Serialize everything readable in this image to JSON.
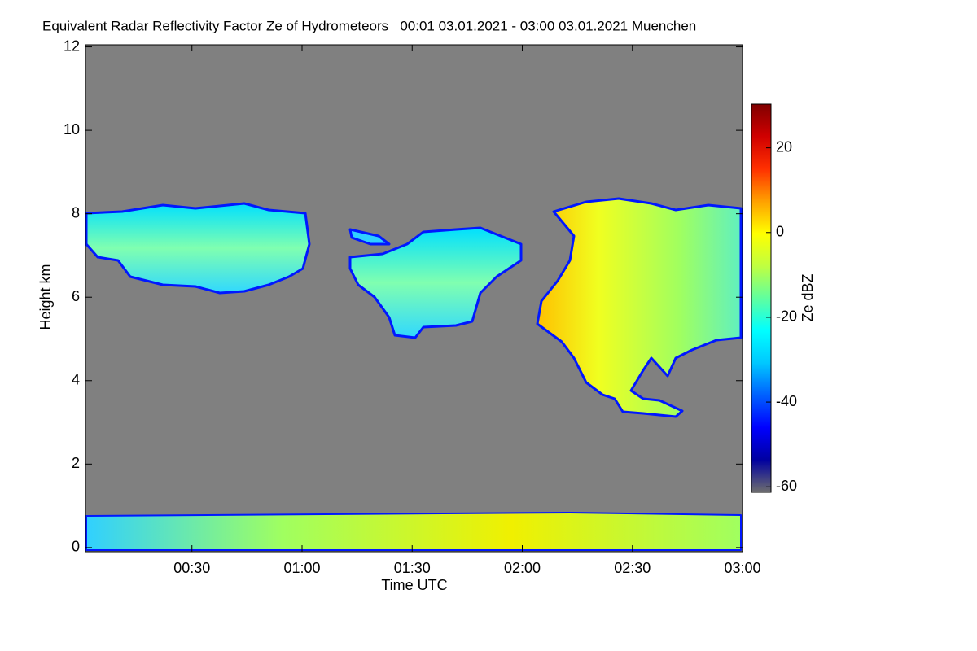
{
  "chart_data": {
    "type": "heatmap",
    "title": "Equivalent Radar Reflectivity Factor Ze of Hydrometeors   00:01 03.01.2021 - 03:00 03.01.2021 Muenchen",
    "x_label": "Time UTC",
    "y_label": "Height km",
    "colorbar_label": "Ze dBZ",
    "xlim": [
      1,
      180
    ],
    "xticks": [
      {
        "value": 30,
        "label": "00:30"
      },
      {
        "value": 60,
        "label": "01:00"
      },
      {
        "value": 90,
        "label": "01:30"
      },
      {
        "value": 120,
        "label": "02:00"
      },
      {
        "value": 150,
        "label": "02:30"
      },
      {
        "value": 180,
        "label": "03:00"
      }
    ],
    "ylim": [
      -0.1,
      12.05
    ],
    "yticks": [
      0,
      2,
      4,
      6,
      8,
      10,
      12
    ],
    "clim": [
      -61.3,
      30.3
    ],
    "cticks": [
      -60,
      -40,
      -20,
      0,
      20
    ],
    "colorscale": [
      "#6e6e6e",
      "#0000a0",
      "#0000ff",
      "#0060ff",
      "#00c8ff",
      "#00ffff",
      "#60ff9f",
      "#c0ff40",
      "#ffff00",
      "#ffa000",
      "#ff3000",
      "#d00000",
      "#800000"
    ],
    "background_color": "#808080"
  }
}
